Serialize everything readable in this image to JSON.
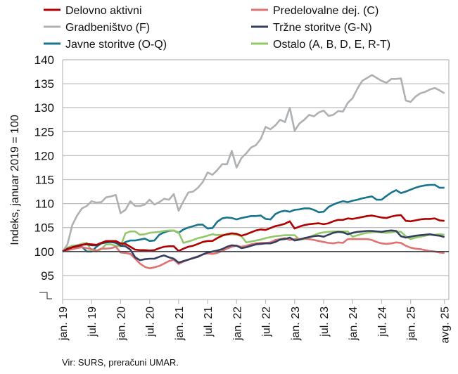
{
  "chart_data": {
    "type": "line",
    "title": "",
    "xlabel": "",
    "ylabel": "Indeks, januar 2019 = 100",
    "ylim": [
      90,
      140
    ],
    "yticks": [
      95,
      100,
      105,
      110,
      115,
      120,
      125,
      130,
      135,
      140
    ],
    "grid": true,
    "legend_placement": "top",
    "x_start": "jan. 19",
    "x_end": "avg. 25",
    "x_tick_labels": [
      "jan. 19",
      "jul. 19",
      "jan. 20",
      "jul. 20",
      "jan. 21",
      "jul. 21",
      "jan. 22",
      "jul. 22",
      "jan. 23",
      "jul. 23",
      "jan. 24",
      "jul. 24",
      "jan. 25",
      "avg. 25"
    ],
    "x_tick_months": [
      0,
      6,
      12,
      18,
      24,
      30,
      36,
      42,
      48,
      54,
      60,
      66,
      72,
      79
    ],
    "series": [
      {
        "name": "Delovno aktivni",
        "color": "#B00000",
        "values": [
          100,
          100.5,
          100.9,
          101.1,
          101.4,
          101.6,
          101.5,
          101.4,
          101.8,
          102.2,
          102.2,
          102.2,
          101.7,
          101.6,
          101,
          100.4,
          100.3,
          100.3,
          100.2,
          100.3,
          100.7,
          101,
          101.1,
          101.1,
          100.1,
          100.6,
          101,
          101.2,
          101.6,
          102,
          102.2,
          102.2,
          102.8,
          103.3,
          103.6,
          103.8,
          103.7,
          103.3,
          103.6,
          104,
          104.4,
          104.6,
          104.5,
          104.9,
          105.3,
          105.5,
          105.8,
          106.3,
          104.8,
          105.2,
          105.5,
          105.7,
          105.8,
          105.9,
          105.7,
          105.9,
          106.3,
          106.6,
          106.6,
          106.9,
          106.8,
          107,
          107.2,
          107.4,
          107.5,
          107.3,
          107.1,
          107,
          107.3,
          107.5,
          107.6,
          106.4,
          106.3,
          106.5,
          106.7,
          106.8,
          106.8,
          106.9,
          106.5,
          106.4
        ]
      },
      {
        "name": "Predelovalne dej. (C)",
        "color": "#E07272",
        "values": [
          100,
          100.3,
          100.5,
          100.7,
          100.9,
          100.7,
          100.5,
          100.2,
          100.6,
          100.6,
          100.7,
          101,
          99.8,
          99.7,
          99.5,
          98.5,
          97.5,
          96.8,
          96.5,
          96.7,
          97,
          97.5,
          98,
          98.3,
          97.4,
          97.9,
          98.3,
          98.7,
          99,
          99.4,
          99.6,
          99.5,
          99.7,
          100.1,
          100.6,
          101,
          101.2,
          101,
          101.2,
          101.5,
          101.7,
          101.8,
          101.8,
          101.9,
          102.4,
          102.6,
          102.8,
          102.4,
          102.6,
          102.6,
          102.7,
          102.6,
          102.4,
          102.2,
          102,
          101.8,
          101.7,
          101.9,
          101.8,
          102.6,
          102.6,
          102.6,
          102.6,
          102.6,
          102.4,
          102,
          101.7,
          101.6,
          101.7,
          101.9,
          101.8,
          101.2,
          100.8,
          100.6,
          100.5,
          100.3,
          100.1,
          100,
          99.8,
          99.7
        ]
      },
      {
        "name": "Gradbeništvo (F)",
        "color": "#AEB1B4",
        "values": [
          100,
          101.5,
          105.5,
          107.5,
          109,
          109.5,
          110.5,
          110.2,
          110.3,
          111.3,
          111.5,
          111.8,
          108,
          108.7,
          110.5,
          109.5,
          109.5,
          109.8,
          110.8,
          109.8,
          110.3,
          111,
          110.8,
          112,
          108.5,
          110.5,
          112.3,
          112.5,
          113.3,
          114.5,
          116.5,
          116,
          117,
          118.2,
          118.2,
          121,
          117.5,
          119.5,
          120.5,
          121.7,
          122.2,
          123.5,
          126,
          125.5,
          126.3,
          127.5,
          127,
          130,
          125.2,
          126.7,
          127.5,
          128.5,
          128.2,
          129,
          129.4,
          128.3,
          128.5,
          129.3,
          129.2,
          131,
          132,
          134,
          135.6,
          136.2,
          136.8,
          136.2,
          135.6,
          135.2,
          136,
          136,
          136.1,
          131.5,
          131.2,
          132.3,
          133,
          133.3,
          133.8,
          134.1,
          133.6,
          133
        ]
      },
      {
        "name": "Tržne storitve (G-N)",
        "color": "#333F5F",
        "values": [
          100,
          100.6,
          100.9,
          101.2,
          101.4,
          101.5,
          101.3,
          101.3,
          101.7,
          101.9,
          102,
          101.9,
          101.2,
          101.1,
          100.4,
          98.8,
          98.2,
          98.4,
          98.5,
          98.5,
          98.9,
          99.2,
          98.8,
          98.5,
          97.7,
          98,
          98.3,
          98.6,
          98.9,
          99.4,
          99.8,
          100,
          100.2,
          100.5,
          101,
          101.3,
          101.2,
          100.7,
          100.9,
          101.2,
          101.5,
          101.6,
          101.7,
          101.7,
          102,
          102.5,
          102.6,
          102.9,
          102.3,
          102.5,
          102.8,
          103,
          103.2,
          103.3,
          103.1,
          103.5,
          103.9,
          104.1,
          104,
          103.6,
          103.9,
          104.1,
          104.2,
          104.3,
          104.3,
          104.2,
          104.1,
          104.3,
          104.4,
          104.3,
          103.2,
          102.9,
          103.1,
          103.3,
          103.4,
          103.5,
          103.6,
          103.4,
          103.3,
          103
        ]
      },
      {
        "name": "Javne storitve (O-Q)",
        "color": "#17748C",
        "values": [
          100,
          100.5,
          100.7,
          101,
          101,
          100,
          100,
          101,
          101.7,
          102,
          102,
          101.8,
          101.3,
          102,
          102.3,
          102.3,
          102.5,
          102.7,
          102.2,
          102.3,
          103.5,
          104,
          104.3,
          104.4,
          103.9,
          104.6,
          105,
          105.3,
          105.6,
          105.6,
          104.8,
          104.9,
          106.2,
          106.9,
          107.1,
          107,
          106.7,
          107,
          107.2,
          107.4,
          107.4,
          107.5,
          106.8,
          106.7,
          107.8,
          108.3,
          108.5,
          108.3,
          108.7,
          108.8,
          109,
          109,
          108.7,
          108.2,
          108.3,
          109.3,
          109.8,
          110.2,
          110.5,
          110.3,
          110.6,
          110.8,
          111.1,
          111.3,
          111.5,
          110.8,
          110.8,
          111.6,
          112.3,
          112.8,
          112.2,
          112.5,
          112.9,
          113.3,
          113.6,
          113.8,
          113.9,
          113.9,
          113.3,
          113.3
        ]
      },
      {
        "name": "Ostalo (A, B, D, E, R-T)",
        "color": "#92C86A",
        "values": [
          100,
          100.8,
          101.2,
          101.3,
          101.6,
          101.8,
          100.2,
          100,
          100.5,
          101.5,
          101.5,
          101.2,
          101.1,
          103.8,
          104.2,
          104.2,
          103.5,
          103.6,
          103.9,
          104,
          104.1,
          104.3,
          104.4,
          104.4,
          104,
          101.8,
          102.1,
          102.4,
          102.8,
          103,
          103.3,
          103.6,
          103.4,
          103.5,
          103.5,
          103.6,
          103.5,
          103.2,
          101.9,
          102.1,
          102.3,
          102.5,
          102.8,
          103,
          103.2,
          103.3,
          103.4,
          103.4,
          103.4,
          102.5,
          102.6,
          103,
          103.4,
          103.8,
          104,
          104.1,
          104.2,
          104.2,
          104.2,
          104.2,
          103.1,
          103.4,
          103.7,
          103.9,
          104,
          104.1,
          104,
          103.9,
          104,
          104.2,
          104.1,
          103.2,
          102.6,
          102.9,
          103.1,
          103.3,
          103.5,
          103.5,
          103.6,
          103.5
        ]
      }
    ],
    "reference_line": 100
  },
  "legend_order": [
    0,
    1,
    2,
    3,
    4,
    5
  ],
  "source": "Vir: SURS, preračuni UMAR."
}
